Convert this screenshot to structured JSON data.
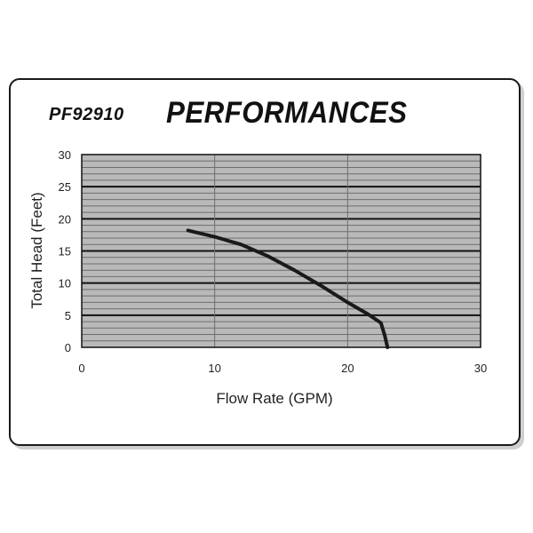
{
  "model": "PF92910",
  "heading": "PERFORMANCES",
  "colors": {
    "plot_background": "#b9b9b9",
    "minor_grid": "#6e6e6e",
    "major_grid": "#111111",
    "curve": "#1a1a1a"
  },
  "chart_data": {
    "type": "line",
    "title": "PERFORMANCES",
    "xlabel": "Flow Rate (GPM)",
    "ylabel": "Total Head (Feet)",
    "xlim": [
      0,
      30
    ],
    "ylim": [
      0,
      30
    ],
    "x_ticks": [
      "0",
      "10",
      "20",
      "30"
    ],
    "y_ticks": [
      "0",
      "5",
      "10",
      "15",
      "20",
      "25",
      "30"
    ],
    "grid": true,
    "legend": "none",
    "series": [
      {
        "x": [
          8,
          10,
          12,
          14,
          16,
          18,
          20,
          21.5,
          22.5,
          22.8,
          23
        ],
        "y": [
          18.2,
          17.2,
          16,
          14.2,
          12,
          9.6,
          7,
          5.2,
          3.8,
          1.8,
          0
        ]
      }
    ]
  }
}
